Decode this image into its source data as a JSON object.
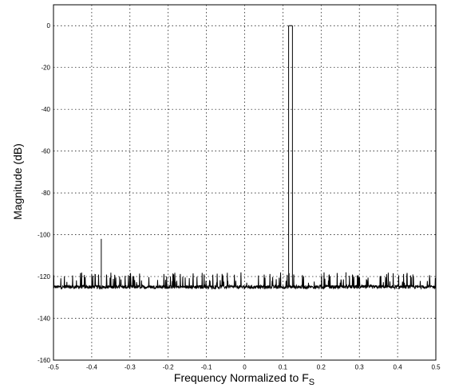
{
  "chart_data": {
    "type": "line",
    "title": "",
    "xlabel": "Frequency Normalized to F",
    "xlabel_subscript": "S",
    "ylabel": "Magnitude (dB)",
    "xlim": [
      -0.5,
      0.5
    ],
    "ylim": [
      -160,
      10
    ],
    "grid": true,
    "x_ticks": [
      -0.5,
      -0.4,
      -0.3,
      -0.2,
      -0.1,
      0,
      0.1,
      0.2,
      0.3,
      0.4,
      0.5
    ],
    "y_ticks": [
      0,
      -20,
      -40,
      -60,
      -80,
      -100,
      -120,
      -140,
      -160
    ],
    "x_tick_labels": [
      "-0.5",
      "-0.4",
      "-0.3",
      "-0.2",
      "-0.1",
      "0",
      "0.1",
      "0.2",
      "0.3",
      "0.4",
      "0.5"
    ],
    "y_tick_labels": [
      "0",
      "-20",
      "-40",
      "-60",
      "-80",
      "-100",
      "-120",
      "-140",
      "-160"
    ],
    "noise_floor_db": -125,
    "noise_spur_max_db": -118,
    "spikes": [
      {
        "x": -0.375,
        "y": -102
      },
      {
        "x": 0.115,
        "y": 0
      },
      {
        "x": 0.125,
        "y": 0
      },
      {
        "x": -0.4,
        "y": -119
      },
      {
        "x": 0.265,
        "y": -118
      },
      {
        "x": 0.44,
        "y": -119
      }
    ]
  }
}
